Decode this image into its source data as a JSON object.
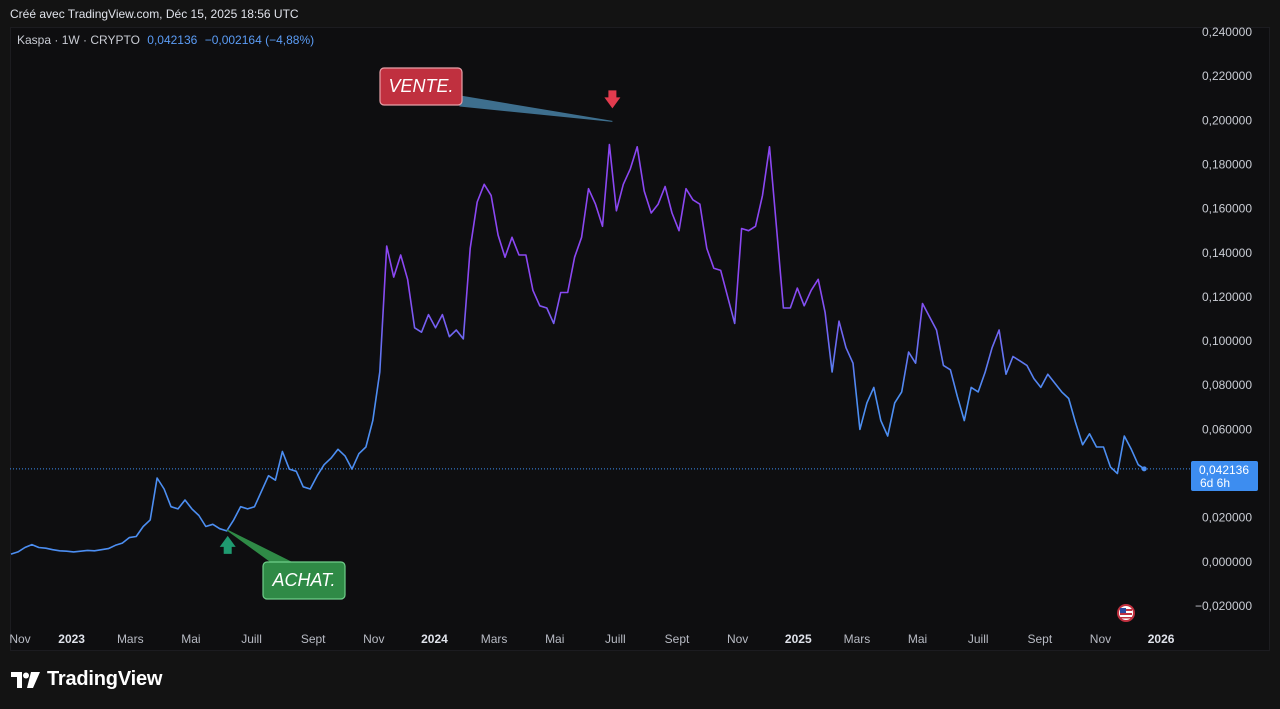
{
  "caption": "Créé avec TradingView.com, Déc 15, 2025 18:56 UTC",
  "legend": {
    "symbol": "Kaspa · 1W · CRYPTO",
    "last": "0,042136",
    "change": "−0,002164 (−4,88%)"
  },
  "price_label": {
    "value": "0,042136",
    "countdown": "6d 6h"
  },
  "brand": "TradingView",
  "colors": {
    "line_low": "#4c8ef2",
    "line_high": "#8b47f2",
    "sell": "#c0303f",
    "buy": "#2f8a46",
    "price_tag": "#3d8df0"
  },
  "flag_icon": "us-flag-icon",
  "chart_data": {
    "type": "line",
    "ylim": [
      -0.02,
      0.24
    ],
    "y_ticks": [
      "0,240000",
      "0,220000",
      "0,200000",
      "0,180000",
      "0,160000",
      "0,140000",
      "0,120000",
      "0,100000",
      "0,080000",
      "0,060000",
      "0,040000",
      "0,020000",
      "0,000000",
      "−0,020000"
    ],
    "y_tick_values": [
      0.24,
      0.22,
      0.2,
      0.18,
      0.16,
      0.14,
      0.12,
      0.1,
      0.08,
      0.06,
      0.04,
      0.02,
      0.0,
      -0.02
    ],
    "x_ticks": [
      {
        "label": "Nov",
        "date": "2022-11-01",
        "bold": false
      },
      {
        "label": "2023",
        "date": "2023-01-01",
        "bold": true
      },
      {
        "label": "Mars",
        "date": "2023-03-01",
        "bold": false
      },
      {
        "label": "Mai",
        "date": "2023-05-01",
        "bold": false
      },
      {
        "label": "Juill",
        "date": "2023-07-01",
        "bold": false
      },
      {
        "label": "Sept",
        "date": "2023-09-01",
        "bold": false
      },
      {
        "label": "Nov",
        "date": "2023-11-01",
        "bold": false
      },
      {
        "label": "2024",
        "date": "2024-01-01",
        "bold": true
      },
      {
        "label": "Mars",
        "date": "2024-03-01",
        "bold": false
      },
      {
        "label": "Mai",
        "date": "2024-05-01",
        "bold": false
      },
      {
        "label": "Juill",
        "date": "2024-07-01",
        "bold": false
      },
      {
        "label": "Sept",
        "date": "2024-09-01",
        "bold": false
      },
      {
        "label": "Nov",
        "date": "2024-11-01",
        "bold": false
      },
      {
        "label": "2025",
        "date": "2025-01-01",
        "bold": true
      },
      {
        "label": "Mars",
        "date": "2025-03-01",
        "bold": false
      },
      {
        "label": "Mai",
        "date": "2025-05-01",
        "bold": false
      },
      {
        "label": "Juill",
        "date": "2025-07-01",
        "bold": false
      },
      {
        "label": "Sept",
        "date": "2025-09-01",
        "bold": false
      },
      {
        "label": "Nov",
        "date": "2025-11-01",
        "bold": false
      },
      {
        "label": "2026",
        "date": "2026-01-01",
        "bold": true
      }
    ],
    "series": [
      {
        "values": [
          [
            "2022-11-01",
            0.0035
          ],
          [
            "2022-11-08",
            0.0045
          ],
          [
            "2022-11-15",
            0.0065
          ],
          [
            "2022-11-22",
            0.0078
          ],
          [
            "2022-11-29",
            0.0065
          ],
          [
            "2022-12-06",
            0.0062
          ],
          [
            "2022-12-13",
            0.0055
          ],
          [
            "2022-12-20",
            0.005
          ],
          [
            "2022-12-27",
            0.0048
          ],
          [
            "2023-01-03",
            0.0045
          ],
          [
            "2023-01-10",
            0.0048
          ],
          [
            "2023-01-17",
            0.0052
          ],
          [
            "2023-01-24",
            0.005
          ],
          [
            "2023-01-31",
            0.0055
          ],
          [
            "2023-02-07",
            0.006
          ],
          [
            "2023-02-14",
            0.0075
          ],
          [
            "2023-02-21",
            0.0085
          ],
          [
            "2023-02-28",
            0.011
          ],
          [
            "2023-03-07",
            0.0115
          ],
          [
            "2023-03-14",
            0.016
          ],
          [
            "2023-03-21",
            0.019
          ],
          [
            "2023-03-28",
            0.038
          ],
          [
            "2023-04-04",
            0.033
          ],
          [
            "2023-04-11",
            0.025
          ],
          [
            "2023-04-18",
            0.024
          ],
          [
            "2023-04-25",
            0.028
          ],
          [
            "2023-05-02",
            0.024
          ],
          [
            "2023-05-09",
            0.021
          ],
          [
            "2023-05-16",
            0.016
          ],
          [
            "2023-05-23",
            0.017
          ],
          [
            "2023-05-30",
            0.015
          ],
          [
            "2023-06-06",
            0.014
          ],
          [
            "2023-06-13",
            0.019
          ],
          [
            "2023-06-20",
            0.025
          ],
          [
            "2023-06-27",
            0.024
          ],
          [
            "2023-07-04",
            0.025
          ],
          [
            "2023-07-11",
            0.032
          ],
          [
            "2023-07-18",
            0.039
          ],
          [
            "2023-07-25",
            0.037
          ],
          [
            "2023-08-01",
            0.05
          ],
          [
            "2023-08-08",
            0.042
          ],
          [
            "2023-08-15",
            0.041
          ],
          [
            "2023-08-22",
            0.034
          ],
          [
            "2023-08-29",
            0.033
          ],
          [
            "2023-09-05",
            0.039
          ],
          [
            "2023-09-12",
            0.044
          ],
          [
            "2023-09-19",
            0.047
          ],
          [
            "2023-09-26",
            0.051
          ],
          [
            "2023-10-03",
            0.048
          ],
          [
            "2023-10-10",
            0.042
          ],
          [
            "2023-10-17",
            0.049
          ],
          [
            "2023-10-24",
            0.052
          ],
          [
            "2023-10-31",
            0.064
          ],
          [
            "2023-11-07",
            0.086
          ],
          [
            "2023-11-14",
            0.143
          ],
          [
            "2023-11-21",
            0.129
          ],
          [
            "2023-11-28",
            0.139
          ],
          [
            "2023-12-05",
            0.128
          ],
          [
            "2023-12-12",
            0.106
          ],
          [
            "2023-12-19",
            0.104
          ],
          [
            "2023-12-26",
            0.112
          ],
          [
            "2024-01-02",
            0.106
          ],
          [
            "2024-01-09",
            0.112
          ],
          [
            "2024-01-16",
            0.102
          ],
          [
            "2024-01-23",
            0.105
          ],
          [
            "2024-01-30",
            0.101
          ],
          [
            "2024-02-06",
            0.142
          ],
          [
            "2024-02-13",
            0.163
          ],
          [
            "2024-02-20",
            0.171
          ],
          [
            "2024-02-27",
            0.166
          ],
          [
            "2024-03-05",
            0.148
          ],
          [
            "2024-03-12",
            0.138
          ],
          [
            "2024-03-19",
            0.147
          ],
          [
            "2024-03-26",
            0.139
          ],
          [
            "2024-04-02",
            0.139
          ],
          [
            "2024-04-09",
            0.123
          ],
          [
            "2024-04-16",
            0.116
          ],
          [
            "2024-04-23",
            0.115
          ],
          [
            "2024-04-30",
            0.108
          ],
          [
            "2024-05-07",
            0.122
          ],
          [
            "2024-05-14",
            0.122
          ],
          [
            "2024-05-21",
            0.138
          ],
          [
            "2024-05-28",
            0.147
          ],
          [
            "2024-06-04",
            0.169
          ],
          [
            "2024-06-11",
            0.162
          ],
          [
            "2024-06-18",
            0.152
          ],
          [
            "2024-06-25",
            0.189
          ],
          [
            "2024-07-02",
            0.159
          ],
          [
            "2024-07-09",
            0.171
          ],
          [
            "2024-07-16",
            0.178
          ],
          [
            "2024-07-23",
            0.188
          ],
          [
            "2024-07-30",
            0.168
          ],
          [
            "2024-08-06",
            0.158
          ],
          [
            "2024-08-13",
            0.162
          ],
          [
            "2024-08-20",
            0.17
          ],
          [
            "2024-08-27",
            0.158
          ],
          [
            "2024-09-03",
            0.15
          ],
          [
            "2024-09-10",
            0.169
          ],
          [
            "2024-09-17",
            0.164
          ],
          [
            "2024-09-24",
            0.162
          ],
          [
            "2024-10-01",
            0.142
          ],
          [
            "2024-10-08",
            0.133
          ],
          [
            "2024-10-15",
            0.132
          ],
          [
            "2024-10-22",
            0.12
          ],
          [
            "2024-10-29",
            0.108
          ],
          [
            "2024-11-05",
            0.151
          ],
          [
            "2024-11-12",
            0.15
          ],
          [
            "2024-11-19",
            0.152
          ],
          [
            "2024-11-26",
            0.166
          ],
          [
            "2024-12-03",
            0.188
          ],
          [
            "2024-12-10",
            0.152
          ],
          [
            "2024-12-17",
            0.115
          ],
          [
            "2024-12-24",
            0.115
          ],
          [
            "2024-12-31",
            0.124
          ],
          [
            "2025-01-07",
            0.116
          ],
          [
            "2025-01-14",
            0.123
          ],
          [
            "2025-01-21",
            0.128
          ],
          [
            "2025-01-28",
            0.113
          ],
          [
            "2025-02-04",
            0.086
          ],
          [
            "2025-02-11",
            0.109
          ],
          [
            "2025-02-18",
            0.097
          ],
          [
            "2025-02-25",
            0.09
          ],
          [
            "2025-03-04",
            0.06
          ],
          [
            "2025-03-11",
            0.072
          ],
          [
            "2025-03-18",
            0.079
          ],
          [
            "2025-03-25",
            0.064
          ],
          [
            "2025-04-01",
            0.057
          ],
          [
            "2025-04-08",
            0.072
          ],
          [
            "2025-04-15",
            0.077
          ],
          [
            "2025-04-22",
            0.095
          ],
          [
            "2025-04-29",
            0.09
          ],
          [
            "2025-05-06",
            0.117
          ],
          [
            "2025-05-13",
            0.111
          ],
          [
            "2025-05-20",
            0.105
          ],
          [
            "2025-05-27",
            0.089
          ],
          [
            "2025-06-03",
            0.087
          ],
          [
            "2025-06-10",
            0.075
          ],
          [
            "2025-06-17",
            0.064
          ],
          [
            "2025-06-24",
            0.079
          ],
          [
            "2025-07-01",
            0.077
          ],
          [
            "2025-07-08",
            0.086
          ],
          [
            "2025-07-15",
            0.097
          ],
          [
            "2025-07-22",
            0.105
          ],
          [
            "2025-07-29",
            0.085
          ],
          [
            "2025-08-05",
            0.093
          ],
          [
            "2025-08-12",
            0.091
          ],
          [
            "2025-08-19",
            0.089
          ],
          [
            "2025-08-26",
            0.083
          ],
          [
            "2025-09-02",
            0.079
          ],
          [
            "2025-09-09",
            0.085
          ],
          [
            "2025-09-16",
            0.081
          ],
          [
            "2025-09-23",
            0.077
          ],
          [
            "2025-09-30",
            0.074
          ],
          [
            "2025-10-07",
            0.063
          ],
          [
            "2025-10-14",
            0.053
          ],
          [
            "2025-10-21",
            0.058
          ],
          [
            "2025-10-28",
            0.052
          ],
          [
            "2025-11-04",
            0.052
          ],
          [
            "2025-11-11",
            0.043
          ],
          [
            "2025-11-18",
            0.04
          ],
          [
            "2025-11-25",
            0.057
          ],
          [
            "2025-12-02",
            0.051
          ],
          [
            "2025-12-09",
            0.044
          ],
          [
            "2025-12-15",
            0.042136
          ]
        ]
      }
    ],
    "last_value": 0.042136,
    "annotations": [
      {
        "text": "VENTE.",
        "type": "sell",
        "date": "2024-06-28",
        "value": 0.1995
      },
      {
        "text": "ACHAT.",
        "type": "buy",
        "date": "2023-06-06",
        "value": 0.0145
      }
    ]
  }
}
